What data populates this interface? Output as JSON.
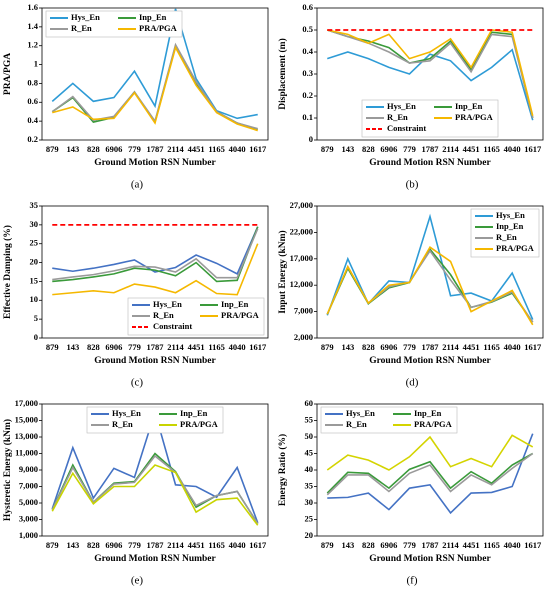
{
  "chart_data": [
    {
      "type": "line",
      "caption": "(a)",
      "ylabel": "PRA/PGA",
      "xlabel": "Ground Motion RSN Number",
      "categories": [
        "879",
        "143",
        "828",
        "6906",
        "779",
        "1787",
        "2114",
        "4451",
        "1165",
        "4040",
        "1617"
      ],
      "ylim": [
        0.2,
        1.6
      ],
      "yticks": [
        0.2,
        0.4,
        0.6,
        0.8,
        1,
        1.2,
        1.4,
        1.6
      ],
      "legend": "upper left",
      "legend_columns": 2,
      "series": [
        {
          "name": "Hys_En",
          "color": "#2e9bd6",
          "values": [
            0.61,
            0.8,
            0.61,
            0.65,
            0.93,
            0.56,
            1.59,
            0.85,
            0.51,
            0.43,
            0.47
          ]
        },
        {
          "name": "Inp_En",
          "color": "#3a9a3a",
          "values": [
            0.5,
            0.65,
            0.39,
            0.44,
            0.71,
            0.39,
            1.2,
            0.8,
            0.5,
            0.38,
            0.31
          ]
        },
        {
          "name": "R_En",
          "color": "#9a9a9a",
          "values": [
            0.5,
            0.66,
            0.41,
            0.45,
            0.71,
            0.4,
            1.21,
            0.82,
            0.5,
            0.38,
            0.32
          ]
        },
        {
          "name": "PRA/PGA",
          "color": "#f5b800",
          "values": [
            0.49,
            0.55,
            0.42,
            0.43,
            0.7,
            0.38,
            1.18,
            0.78,
            0.49,
            0.37,
            0.3
          ]
        }
      ]
    },
    {
      "type": "line",
      "caption": "(b)",
      "ylabel": "Displacement (m)",
      "xlabel": "Ground Motion RSN Number",
      "categories": [
        "879",
        "143",
        "828",
        "6906",
        "779",
        "1787",
        "2114",
        "4451",
        "1165",
        "4040",
        "1617"
      ],
      "ylim": [
        0,
        0.6
      ],
      "yticks": [
        0,
        0.1,
        0.2,
        0.3,
        0.4,
        0.5,
        0.6
      ],
      "legend": "lower center",
      "legend_columns": 2,
      "series": [
        {
          "name": "Hys_En",
          "color": "#2e9bd6",
          "values": [
            0.37,
            0.4,
            0.37,
            0.33,
            0.3,
            0.39,
            0.36,
            0.27,
            0.33,
            0.41,
            0.09
          ]
        },
        {
          "name": "Inp_En",
          "color": "#3a9a3a",
          "values": [
            0.5,
            0.47,
            0.45,
            0.42,
            0.35,
            0.37,
            0.45,
            0.32,
            0.49,
            0.48,
            0.1
          ]
        },
        {
          "name": "R_En",
          "color": "#9a9a9a",
          "values": [
            0.5,
            0.47,
            0.44,
            0.4,
            0.35,
            0.36,
            0.44,
            0.31,
            0.48,
            0.47,
            0.1
          ]
        },
        {
          "name": "PRA/PGA",
          "color": "#f5b800",
          "values": [
            0.5,
            0.48,
            0.44,
            0.48,
            0.37,
            0.4,
            0.46,
            0.33,
            0.5,
            0.49,
            0.11
          ]
        },
        {
          "name": "Constraint",
          "color": "#ff0000",
          "dash": true,
          "values": [
            0.5,
            0.5,
            0.5,
            0.5,
            0.5,
            0.5,
            0.5,
            0.5,
            0.5,
            0.5,
            0.5
          ]
        }
      ]
    },
    {
      "type": "line",
      "caption": "(c)",
      "ylabel": "Effective Damping (%)",
      "xlabel": "Ground Motion RSN Number",
      "categories": [
        "879",
        "143",
        "828",
        "6906",
        "779",
        "1787",
        "2114",
        "4451",
        "1165",
        "4040",
        "1617"
      ],
      "ylim": [
        0,
        35
      ],
      "yticks": [
        0,
        5,
        10,
        15,
        20,
        25,
        30,
        35
      ],
      "legend": "lower right",
      "legend_columns": 2,
      "series": [
        {
          "name": "Hys_En",
          "color": "#4472c4",
          "values": [
            18.5,
            17.7,
            18.5,
            19.5,
            20.7,
            17.5,
            18.7,
            22.0,
            19.8,
            17.0,
            29.5
          ]
        },
        {
          "name": "Inp_En",
          "color": "#3a9a3a",
          "values": [
            15.0,
            15.5,
            16.2,
            17.0,
            18.5,
            18.0,
            16.5,
            20.0,
            15.0,
            15.3,
            29.5
          ]
        },
        {
          "name": "R_En",
          "color": "#9a9a9a",
          "values": [
            15.5,
            16.2,
            16.8,
            17.8,
            19.0,
            18.8,
            17.5,
            21.0,
            16.0,
            16.0,
            29.0
          ]
        },
        {
          "name": "PRA/PGA",
          "color": "#f5b800",
          "values": [
            11.5,
            12.0,
            12.5,
            12.0,
            14.3,
            13.5,
            12.0,
            15.2,
            11.8,
            11.5,
            25.0
          ]
        },
        {
          "name": "Constraint",
          "color": "#ff0000",
          "dash": true,
          "values": [
            30,
            30,
            30,
            30,
            30,
            30,
            30,
            30,
            30,
            30,
            30
          ]
        }
      ]
    },
    {
      "type": "line",
      "caption": "(d)",
      "ylabel": "Input Energy (kNm)",
      "xlabel": "Ground Motion RSN Number",
      "categories": [
        "879",
        "143",
        "828",
        "6906",
        "779",
        "1787",
        "2114",
        "4451",
        "1165",
        "4040",
        "1617"
      ],
      "ylim": [
        2000,
        27000
      ],
      "yticks": [
        {
          "value": 2000,
          "label": "2,000"
        },
        {
          "value": 7000,
          "label": "7,000"
        },
        {
          "value": 12000,
          "label": "12,000"
        },
        {
          "value": 17000,
          "label": "17,000"
        },
        {
          "value": 22000,
          "label": "22,000"
        },
        {
          "value": 27000,
          "label": "27,000"
        }
      ],
      "legend": "upper right",
      "legend_columns": 1,
      "series": [
        {
          "name": "Hys_En",
          "color": "#2e9bd6",
          "values": [
            6300,
            17000,
            8500,
            12800,
            12500,
            25000,
            10000,
            10500,
            9000,
            14300,
            5500
          ]
        },
        {
          "name": "Inp_En",
          "color": "#3a9a3a",
          "values": [
            6500,
            15200,
            8500,
            11500,
            12500,
            18800,
            14000,
            7800,
            8800,
            10500,
            5000
          ]
        },
        {
          "name": "R_En",
          "color": "#9a9a9a",
          "values": [
            6500,
            15500,
            8600,
            11700,
            12600,
            18500,
            13000,
            7800,
            8900,
            10700,
            5000
          ]
        },
        {
          "name": "PRA/PGA",
          "color": "#f5b800",
          "values": [
            6500,
            15500,
            8600,
            12000,
            12500,
            19200,
            16500,
            7000,
            9000,
            11000,
            4500
          ]
        }
      ]
    },
    {
      "type": "line",
      "caption": "(e)",
      "ylabel": "Hysteretic Energy (kNm)",
      "xlabel": "Ground Motion RSN Number",
      "categories": [
        "879",
        "143",
        "828",
        "6906",
        "779",
        "1787",
        "2114",
        "4451",
        "1165",
        "4040",
        "1617"
      ],
      "ylim": [
        1000,
        17000
      ],
      "yticks": [
        {
          "value": 1000,
          "label": "1,000"
        },
        {
          "value": 3000,
          "label": "3,000"
        },
        {
          "value": 5000,
          "label": "5,000"
        },
        {
          "value": 7000,
          "label": "7,000"
        },
        {
          "value": 9000,
          "label": "9,000"
        },
        {
          "value": 11000,
          "label": "11,000"
        },
        {
          "value": 13000,
          "label": "13,000"
        },
        {
          "value": 15000,
          "label": "15,000"
        },
        {
          "value": 17000,
          "label": "17,000"
        }
      ],
      "legend": "upper center",
      "legend_columns": 2,
      "series": [
        {
          "name": "Hys_En",
          "color": "#4472c4",
          "values": [
            4300,
            11700,
            5600,
            9200,
            8100,
            16000,
            7200,
            7000,
            5700,
            9300,
            2600
          ]
        },
        {
          "name": "Inp_En",
          "color": "#3a9a3a",
          "values": [
            4200,
            9600,
            5100,
            7400,
            7600,
            11000,
            8800,
            4500,
            5900,
            6400,
            2500
          ]
        },
        {
          "name": "R_En",
          "color": "#9a9a9a",
          "values": [
            4200,
            9300,
            5100,
            7300,
            7500,
            10700,
            8700,
            4700,
            5900,
            6400,
            2500
          ]
        },
        {
          "name": "PRA/PGA",
          "color": "#c8d400",
          "values": [
            4000,
            8600,
            4900,
            7000,
            7000,
            9600,
            8700,
            3900,
            5400,
            5600,
            2300
          ]
        }
      ]
    },
    {
      "type": "line",
      "caption": "(f)",
      "ylabel": "Energy Ratio (%)",
      "xlabel": "Ground Motion RSN Number",
      "categories": [
        "879",
        "143",
        "828",
        "6906",
        "779",
        "1787",
        "2114",
        "4451",
        "1165",
        "4040",
        "1617"
      ],
      "ylim": [
        20,
        60
      ],
      "yticks": [
        20,
        25,
        30,
        35,
        40,
        45,
        50,
        55,
        60
      ],
      "legend": "upper left",
      "legend_columns": 2,
      "series": [
        {
          "name": "Hys_En",
          "color": "#4472c4",
          "values": [
            31.5,
            31.7,
            33,
            28,
            34.5,
            35.5,
            27,
            33,
            33.2,
            35,
            51
          ]
        },
        {
          "name": "Inp_En",
          "color": "#3a9a3a",
          "values": [
            33,
            39.3,
            39,
            34.5,
            40.2,
            42.5,
            34.5,
            39.5,
            36,
            41.5,
            45
          ]
        },
        {
          "name": "R_En",
          "color": "#9a9a9a",
          "values": [
            32.5,
            38.5,
            38.5,
            33.5,
            39,
            41.5,
            33.5,
            38.5,
            35.5,
            40.5,
            45
          ]
        },
        {
          "name": "PRA/PGA",
          "color": "#d4d400",
          "values": [
            40,
            44.5,
            43,
            40,
            44,
            50,
            41,
            43.5,
            41,
            50.5,
            47
          ]
        }
      ]
    }
  ]
}
